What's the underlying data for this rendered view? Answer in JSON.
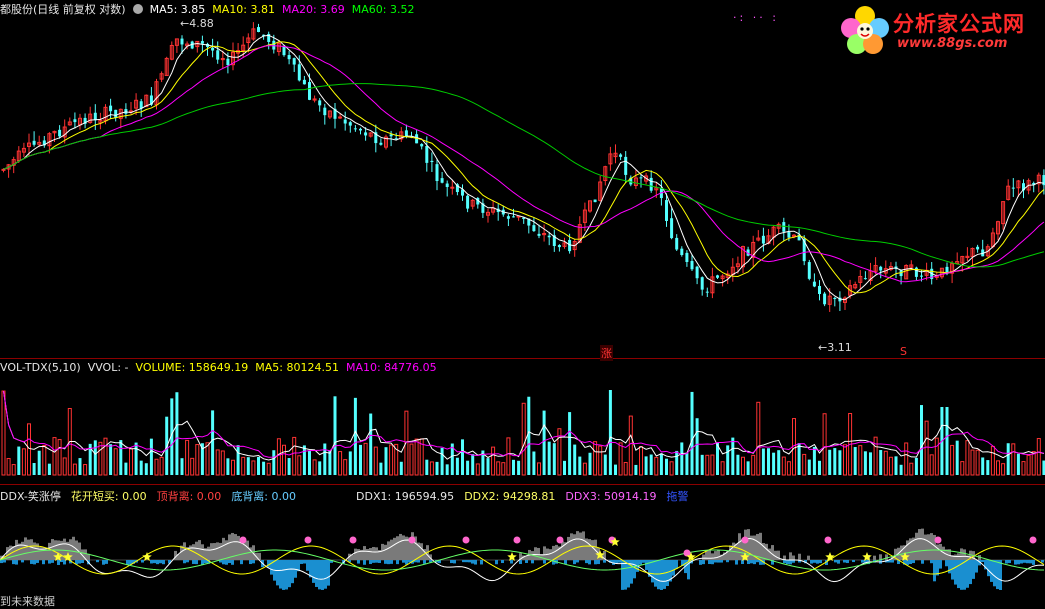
{
  "main_header": {
    "title": "都股份(日线 前复权 对数)",
    "ma5": "MA5: 3.85",
    "ma10": "MA10: 3.81",
    "ma20": "MA20: 3.69",
    "ma60": "MA60: 3.52",
    "colors": {
      "ma5": "#ffffff",
      "ma10": "#ffff00",
      "ma20": "#ff00ff",
      "ma60": "#00ff00"
    }
  },
  "price_annotations": {
    "high": "4.88",
    "low": "3.11"
  },
  "signal_labels": {
    "zhang": "涨",
    "s": "S"
  },
  "vol_header": {
    "name": "VOL-TDX(5,10)",
    "vvol": "VVOL: -",
    "volume": "VOLUME: 158649.19",
    "ma5": "MA5: 80124.51",
    "ma10": "MA10: 84776.05"
  },
  "ddx_header": {
    "name": "DDX-笑涨停",
    "hk": "花开短买: 0.00",
    "top": "顶背离: 0.00",
    "bottom": "底背离: 0.00",
    "ddx1": "DDX1: 196594.95",
    "ddx2": "DDX2: 94298.81",
    "ddx3": "DDX3: 50914.19",
    "tuo": "拖警"
  },
  "footer": {
    "text": "到未来数据"
  },
  "logo": {
    "brand": "分析家公式网",
    "url": "www.88gs.com",
    "icon": "flower-icon"
  },
  "top_right_dots": "·: ·· :"
}
